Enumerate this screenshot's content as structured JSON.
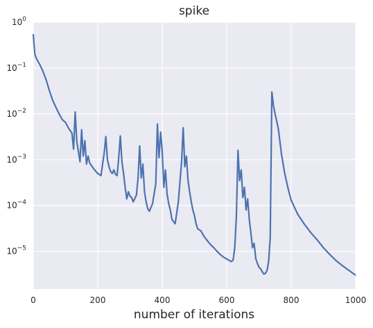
{
  "chart_data": {
    "type": "line",
    "title": "spike",
    "xlabel": "number of iterations",
    "ylabel": "",
    "xlim": [
      0,
      1000
    ],
    "ylim": [
      1.5e-06,
      1
    ],
    "yscale": "log",
    "grid": true,
    "x_ticks": [
      {
        "value": 0,
        "label": "0"
      },
      {
        "value": 200,
        "label": "200"
      },
      {
        "value": 400,
        "label": "400"
      },
      {
        "value": 600,
        "label": "600"
      },
      {
        "value": 800,
        "label": "800"
      },
      {
        "value": 1000,
        "label": "1000"
      }
    ],
    "y_ticks": [
      {
        "value": 1.0,
        "base": "10",
        "exp": "0"
      },
      {
        "value": 0.1,
        "base": "10",
        "exp": "−1"
      },
      {
        "value": 0.01,
        "base": "10",
        "exp": "−2"
      },
      {
        "value": 0.001,
        "base": "10",
        "exp": "−3"
      },
      {
        "value": 0.0001,
        "base": "10",
        "exp": "−4"
      },
      {
        "value": 1e-05,
        "base": "10",
        "exp": "−5"
      }
    ],
    "series": [
      {
        "color": "#4c72b0",
        "x": [
          0,
          2,
          5,
          10,
          20,
          30,
          40,
          50,
          60,
          70,
          80,
          90,
          100,
          110,
          120,
          125,
          130,
          135,
          140,
          145,
          150,
          155,
          160,
          165,
          170,
          175,
          180,
          190,
          200,
          210,
          215,
          220,
          225,
          230,
          235,
          240,
          245,
          250,
          255,
          260,
          265,
          270,
          275,
          280,
          285,
          290,
          295,
          300,
          305,
          310,
          320,
          325,
          330,
          335,
          340,
          345,
          350,
          355,
          360,
          370,
          380,
          385,
          390,
          395,
          400,
          405,
          410,
          415,
          420,
          425,
          430,
          440,
          450,
          460,
          465,
          470,
          475,
          480,
          485,
          490,
          495,
          500,
          505,
          510,
          520,
          530,
          540,
          550,
          560,
          570,
          580,
          590,
          600,
          610,
          615,
          620,
          625,
          630,
          635,
          640,
          645,
          650,
          655,
          660,
          665,
          670,
          675,
          680,
          685,
          690,
          695,
          700,
          705,
          710,
          715,
          720,
          725,
          730,
          735,
          740,
          745,
          750,
          755,
          760,
          765,
          770,
          780,
          790,
          800,
          820,
          840,
          860,
          880,
          900,
          920,
          940,
          960,
          980,
          1000
        ],
        "y": [
          0.55,
          0.35,
          0.2,
          0.16,
          0.12,
          0.085,
          0.055,
          0.032,
          0.02,
          0.014,
          0.01,
          0.0075,
          0.0065,
          0.0048,
          0.0038,
          0.0017,
          0.011,
          0.0025,
          0.0015,
          0.0009,
          0.0045,
          0.0012,
          0.0026,
          0.0008,
          0.0012,
          0.00085,
          0.00075,
          0.0006,
          0.0005,
          0.00045,
          0.0008,
          0.0014,
          0.0032,
          0.001,
          0.0007,
          0.00055,
          0.0005,
          0.0006,
          0.00048,
          0.00045,
          0.0011,
          0.0033,
          0.0009,
          0.0005,
          0.00025,
          0.00014,
          0.0002,
          0.00016,
          0.00015,
          0.00012,
          0.00017,
          0.0004,
          0.002,
          0.0004,
          0.0008,
          0.0002,
          0.00012,
          8.5e-05,
          7.5e-05,
          0.00011,
          0.0003,
          0.006,
          0.0011,
          0.004,
          0.0015,
          0.00025,
          0.0006,
          0.00018,
          0.00011,
          8e-05,
          5e-05,
          4e-05,
          0.00012,
          0.0009,
          0.005,
          0.0007,
          0.0012,
          0.00035,
          0.0002,
          0.00012,
          8e-05,
          6e-05,
          4e-05,
          3.1e-05,
          2.8e-05,
          2.1e-05,
          1.7e-05,
          1.4e-05,
          1.2e-05,
          1e-05,
          8.5e-06,
          7.5e-06,
          6.8e-06,
          6.2e-06,
          6e-06,
          6.5e-06,
          1.2e-05,
          6e-05,
          0.0016,
          0.00035,
          0.0006,
          0.00015,
          0.00025,
          8e-05,
          0.00014,
          5e-05,
          2.5e-05,
          1.2e-05,
          1.5e-05,
          7e-06,
          5.5e-06,
          4.5e-06,
          4.2e-06,
          3.6e-06,
          3.2e-06,
          3.3e-06,
          3.8e-06,
          6e-06,
          2e-05,
          0.03,
          0.015,
          0.01,
          0.007,
          0.0048,
          0.0025,
          0.0013,
          0.0005,
          0.00024,
          0.00013,
          6.5e-05,
          4e-05,
          2.6e-05,
          1.8e-05,
          1.2e-05,
          8.5e-06,
          6.2e-06,
          4.8e-06,
          3.8e-06,
          3e-06
        ]
      }
    ]
  }
}
